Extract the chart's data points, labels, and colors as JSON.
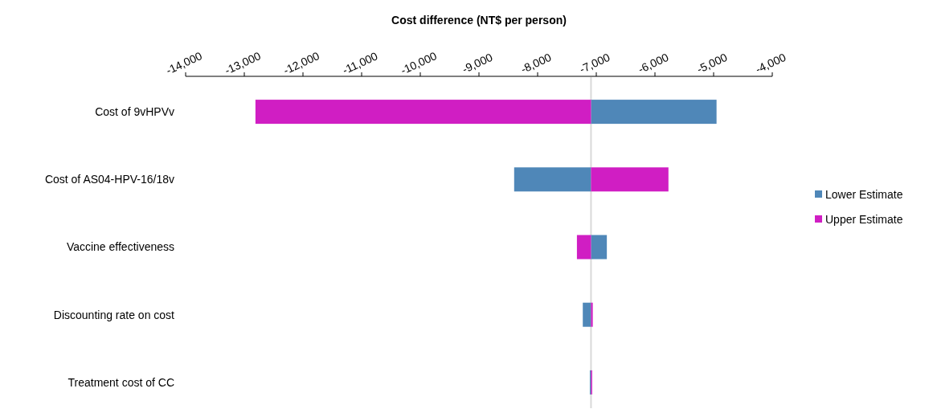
{
  "chart_data": {
    "type": "bar",
    "orientation": "horizontal",
    "xlabel": "Cost difference (NT$ per person)",
    "categories": [
      "Cost of 9vHPVv",
      "Cost of AS04-HPV-16/18v",
      "Vaccine effectiveness",
      "Discounting rate on cost",
      "Treatment cost of CC"
    ],
    "series": [
      {
        "name": "Lower Estimate",
        "color": "#4f87b8",
        "base": [
          -7090,
          -7090,
          -7090,
          -7090,
          -7090
        ],
        "values": [
          2140,
          -1310,
          270,
          -140,
          -20
        ]
      },
      {
        "name": "Upper Estimate",
        "color": "#d01ec3",
        "base": [
          -7090,
          -7090,
          -7090,
          -7090,
          -7090
        ],
        "values": [
          -5720,
          1320,
          -240,
          30,
          20
        ]
      }
    ],
    "xlim": [
      -14000,
      -4000
    ],
    "xticks": [
      {
        "value": -14000,
        "label": "-14,000"
      },
      {
        "value": -13000,
        "label": "-13,000"
      },
      {
        "value": -12000,
        "label": "-12,000"
      },
      {
        "value": -11000,
        "label": "-11,000"
      },
      {
        "value": -10000,
        "label": "-10,000"
      },
      {
        "value": -9000,
        "label": "-9,000"
      },
      {
        "value": -8000,
        "label": "-8,000"
      },
      {
        "value": -7000,
        "label": "-7,000"
      },
      {
        "value": -6000,
        "label": "-6,000"
      },
      {
        "value": -5000,
        "label": "-5,000"
      },
      {
        "value": -4000,
        "label": "-4,000"
      }
    ],
    "ref_lines": [
      {
        "axis": "x",
        "value": -7090,
        "color": "#d9d9d9"
      }
    ],
    "legend": "right",
    "grid": false
  }
}
